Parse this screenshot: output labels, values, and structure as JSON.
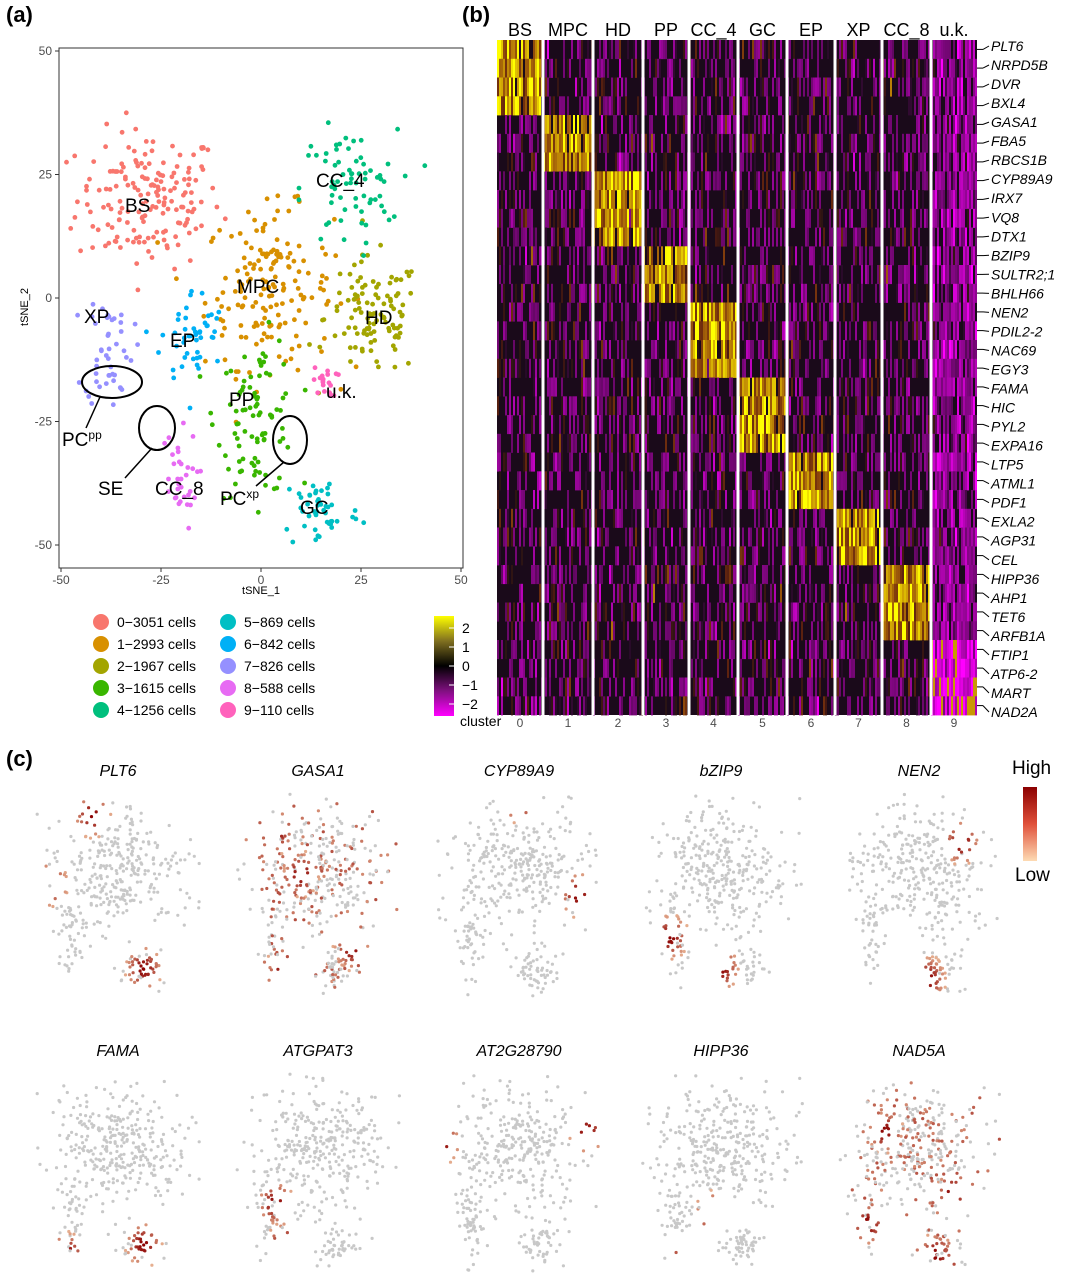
{
  "panel_labels": [
    "(a)",
    "(b)",
    "(c)"
  ],
  "chart_data": [
    {
      "type": "scatter",
      "panel": "(a)",
      "xlabel": "tSNE_1",
      "ylabel": "tSNE_2",
      "xlim": [
        -50,
        50
      ],
      "ylim": [
        -55,
        50
      ],
      "xticks": [
        -50,
        -25,
        0,
        25,
        50
      ],
      "yticks": [
        -50,
        -25,
        0,
        25,
        50
      ],
      "grid": false,
      "clusters": [
        {
          "id": 0,
          "label": "BS",
          "cells": 3051,
          "legend": "0−3051",
          "color": "#F8766D",
          "centroid": [
            -28,
            20
          ]
        },
        {
          "id": 1,
          "label": "MPC",
          "cells": 2993,
          "legend": "1−2993",
          "color": "#D89000",
          "centroid": [
            2,
            2
          ]
        },
        {
          "id": 2,
          "label": "HD",
          "cells": 1967,
          "legend": "2−1967",
          "color": "#A3A500",
          "centroid": [
            28,
            -4
          ]
        },
        {
          "id": 3,
          "label": "PP",
          "cells": 1615,
          "legend": "3−1615",
          "color": "#39B600",
          "centroid": [
            -1,
            -24
          ]
        },
        {
          "id": 4,
          "label": "CC_4",
          "cells": 1256,
          "legend": "4−1256",
          "color": "#00BF7D",
          "centroid": [
            22,
            22
          ]
        },
        {
          "id": 5,
          "label": "GC",
          "cells": 869,
          "legend": "5−869",
          "color": "#00BFC4",
          "centroid": [
            15,
            -43
          ]
        },
        {
          "id": 6,
          "label": "EP",
          "cells": 842,
          "legend": "6−842",
          "color": "#00B0F6",
          "centroid": [
            -17,
            -8
          ]
        },
        {
          "id": 7,
          "label": "XP",
          "cells": 826,
          "legend": "7−826",
          "color": "#9590FF",
          "centroid": [
            -38,
            -10
          ]
        },
        {
          "id": 8,
          "label": "CC_8",
          "cells": 588,
          "legend": "8−588",
          "color": "#E76BF3",
          "centroid": [
            -21,
            -37
          ]
        },
        {
          "id": 9,
          "label": "u.k.",
          "cells": 110,
          "legend": "9−110",
          "color": "#FF62BC",
          "centroid": [
            16,
            -17
          ]
        }
      ],
      "legend_unit": "cells",
      "annotations": [
        {
          "text": "PC",
          "sup": "pp"
        },
        {
          "text": "SE"
        },
        {
          "text": "PC",
          "sup": "xp"
        }
      ]
    },
    {
      "type": "heatmap",
      "panel": "(b)",
      "columns": [
        "BS",
        "MPC",
        "HD",
        "PP",
        "CC_4",
        "GC",
        "EP",
        "XP",
        "CC_8",
        "u.k."
      ],
      "cluster_ids": [
        "0",
        "1",
        "2",
        "3",
        "4",
        "5",
        "6",
        "7",
        "8",
        "9"
      ],
      "cluster_axis_label": "cluster",
      "genes": [
        "PLT6",
        "NRPD5B",
        "DVR",
        "BXL4",
        "GASA1",
        "FBA5",
        "RBCS1B",
        "CYP89A9",
        "IRX7",
        "VQ8",
        "DTX1",
        "BZIP9",
        "SULTR2;1",
        "BHLH66",
        "NEN2",
        "PDIL2-2",
        "NAC69",
        "EGY3",
        "FAMA",
        "HIC",
        "PYL2",
        "EXPA16",
        "LTP5",
        "ATML1",
        "PDF1",
        "EXLA2",
        "AGP31",
        "CEL",
        "HIPP36",
        "AHP1",
        "TET6",
        "ARFB1A",
        "FTIP1",
        "ATP6-2",
        "MART",
        "NAD2A"
      ],
      "colorbar_ticks": [
        "2",
        "1",
        "0",
        "−1",
        "−2"
      ],
      "color_range": [
        -2,
        2
      ],
      "colors": {
        "high": "#FFFF00",
        "mid": "#000000",
        "low": "#FF00FF"
      }
    },
    {
      "type": "scatter",
      "panel": "(c)",
      "feature_plots": [
        "PLT6",
        "GASA1",
        "CYP89A9",
        "bZIP9",
        "NEN2",
        "FAMA",
        "ATGPAT3",
        "AT2G28790",
        "HIPP36",
        "NAD5A"
      ],
      "legend": {
        "high": "High",
        "low": "Low"
      },
      "colors": {
        "high": "#8B0000",
        "low": "#FDDBB4",
        "background": "#C8C8C8"
      }
    }
  ]
}
